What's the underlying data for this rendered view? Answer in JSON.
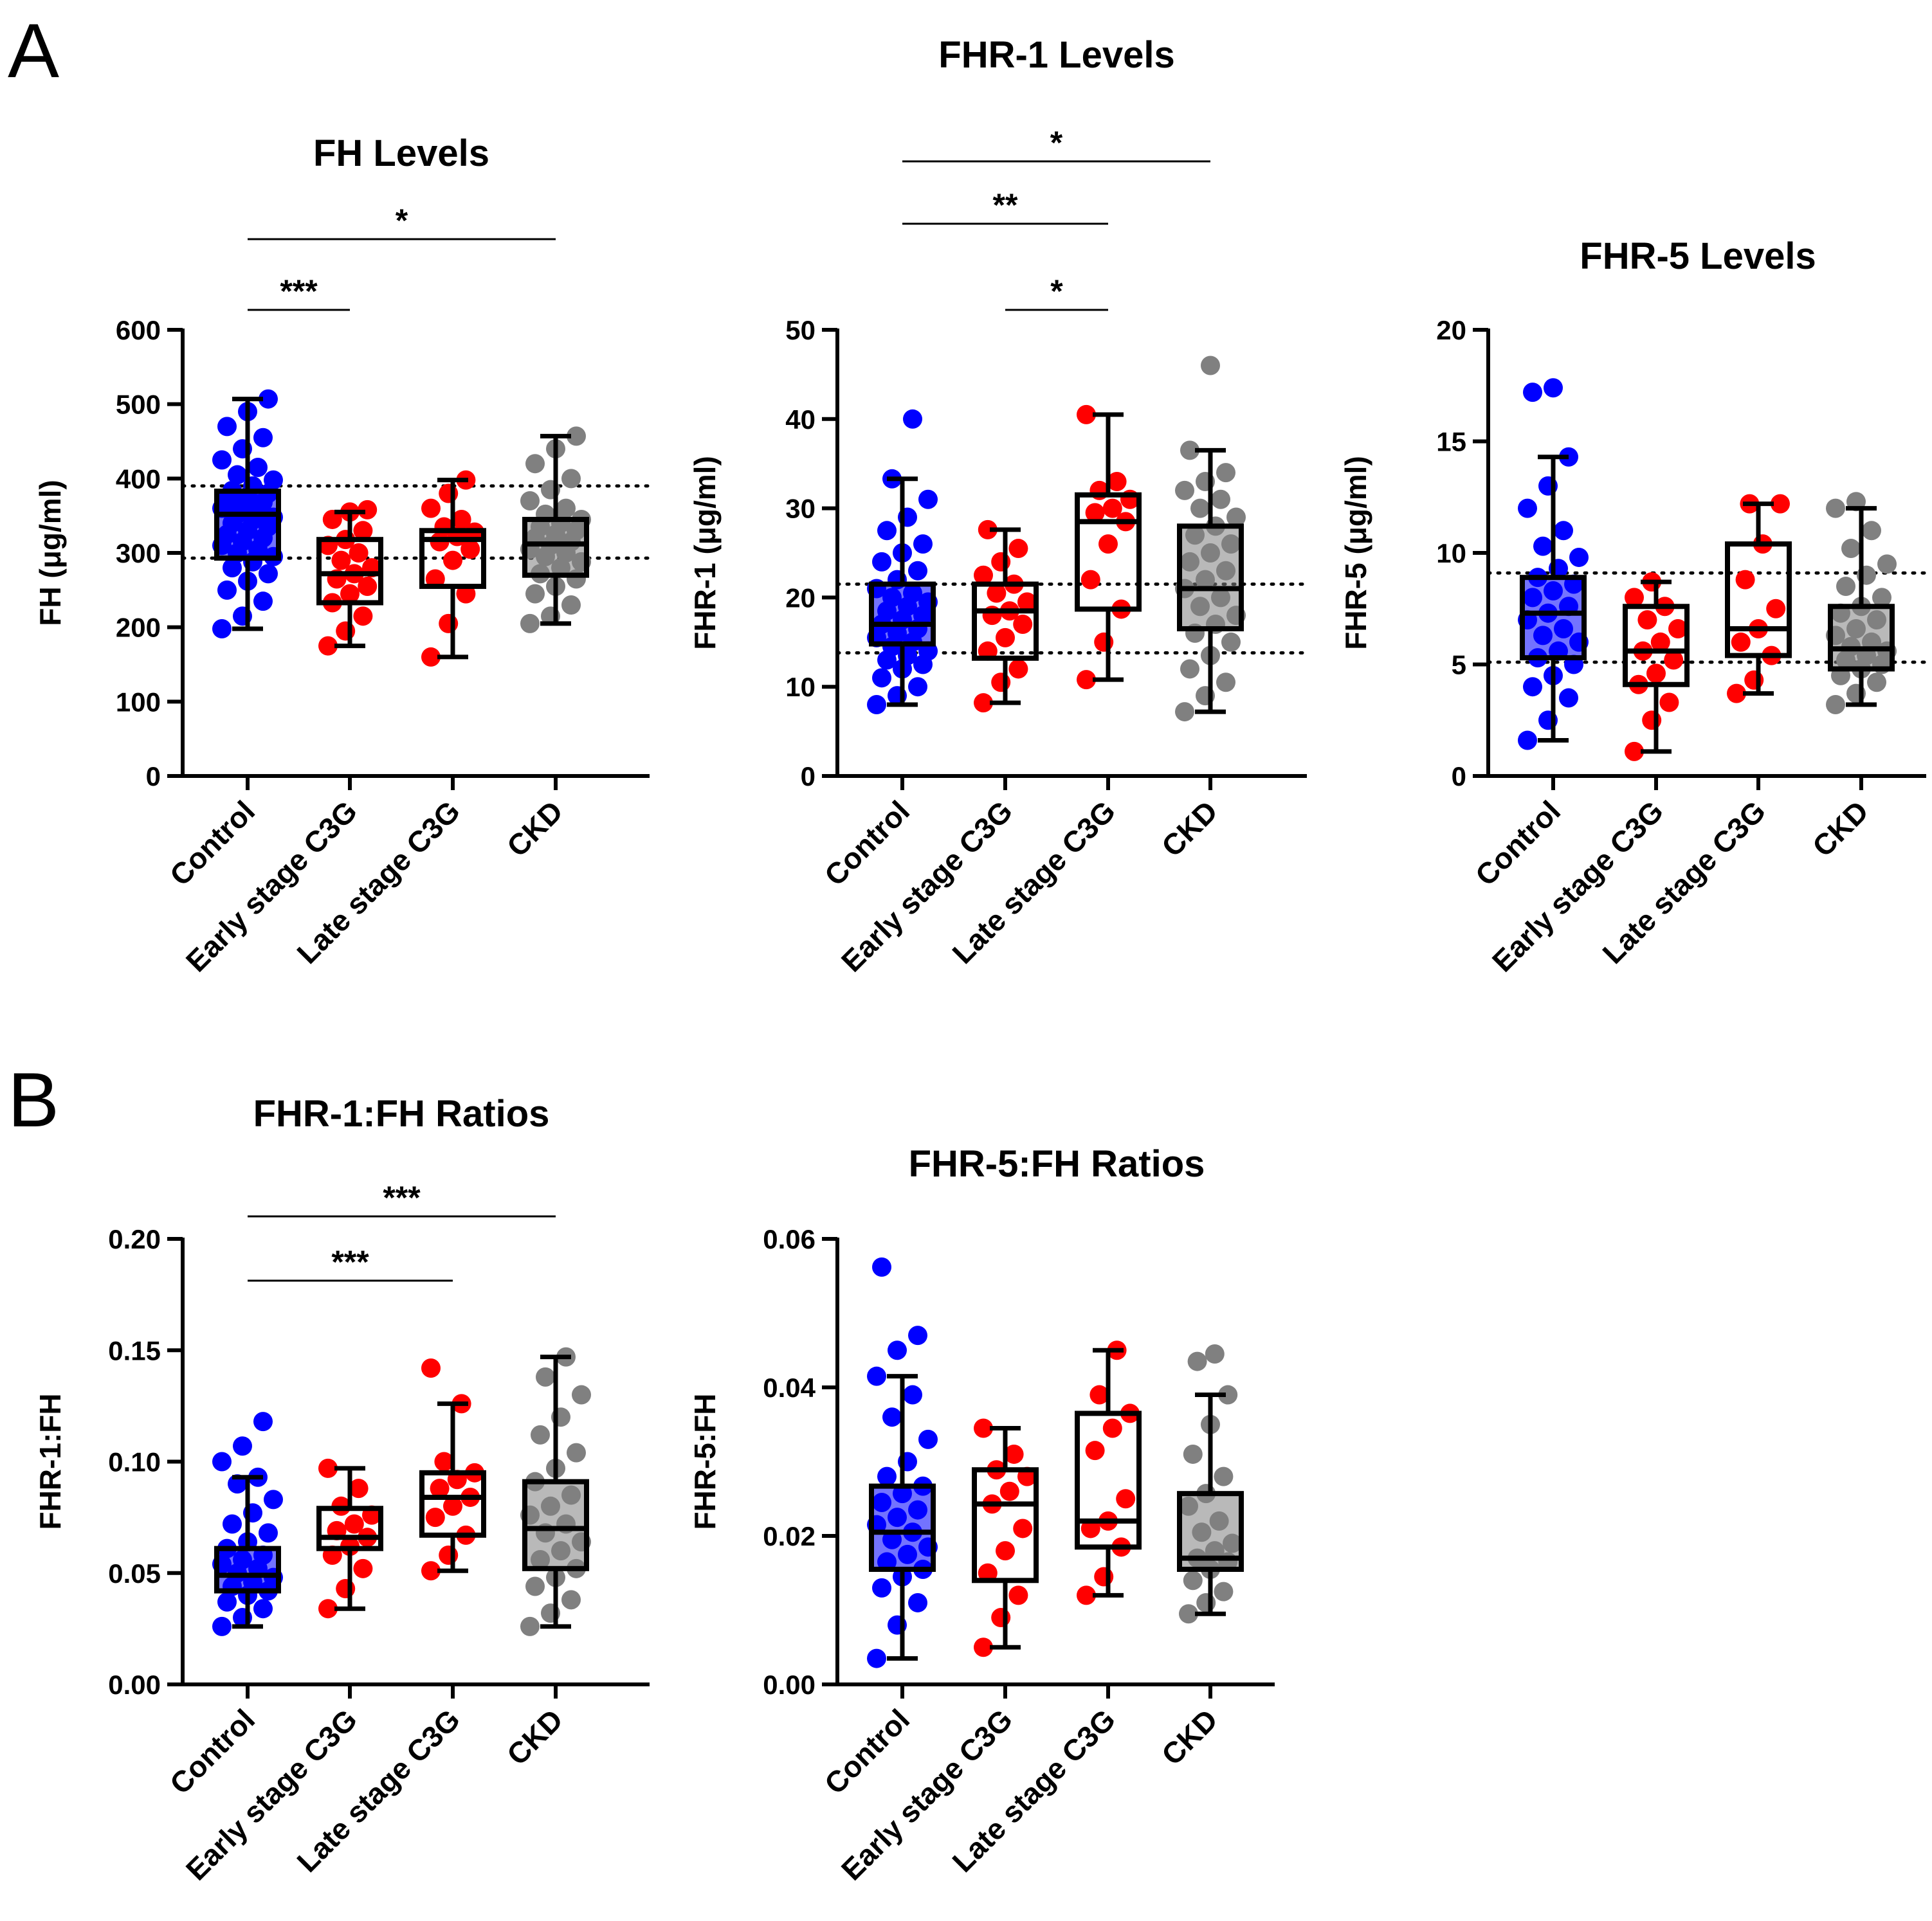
{
  "panel_letters": [
    "A",
    "B"
  ],
  "chart_data": [
    {
      "id": "fh",
      "type": "box",
      "title": "FH Levels",
      "ylabel": "FH (μg/ml)",
      "ylim": [
        0,
        600
      ],
      "yticks": [
        0,
        100,
        200,
        300,
        400,
        500,
        600
      ],
      "categories": [
        "Control",
        "Early stage C3G",
        "Late stage C3G",
        "CKD"
      ],
      "colors": [
        "#0000ff",
        "#ff0000",
        "#ff0000",
        "#808080"
      ],
      "box_fill": [
        "#0000ff",
        "#ffffff",
        "#ffffff",
        "#808080"
      ],
      "reference_lines": [
        390,
        293
      ],
      "boxes": [
        {
          "min": 198,
          "q1": 293,
          "median": 352,
          "q3": 383,
          "max": 507
        },
        {
          "min": 175,
          "q1": 233,
          "median": 272,
          "q3": 318,
          "max": 355
        },
        {
          "min": 160,
          "q1": 255,
          "median": 318,
          "q3": 330,
          "max": 398
        },
        {
          "min": 205,
          "q1": 270,
          "median": 312,
          "q3": 345,
          "max": 457
        }
      ],
      "points": [
        [
          198,
          215,
          235,
          250,
          262,
          272,
          280,
          288,
          295,
          300,
          305,
          310,
          315,
          320,
          325,
          330,
          335,
          340,
          344,
          348,
          352,
          356,
          360,
          364,
          368,
          372,
          376,
          380,
          384,
          390,
          398,
          405,
          415,
          425,
          440,
          455,
          470,
          490,
          507
        ],
        [
          175,
          195,
          215,
          233,
          245,
          255,
          265,
          272,
          280,
          290,
          300,
          310,
          318,
          330,
          345,
          355,
          358
        ],
        [
          160,
          205,
          245,
          265,
          290,
          305,
          315,
          322,
          328,
          335,
          345,
          360,
          380,
          398
        ],
        [
          205,
          215,
          230,
          245,
          255,
          265,
          272,
          280,
          288,
          295,
          300,
          305,
          310,
          315,
          320,
          325,
          330,
          335,
          340,
          345,
          352,
          360,
          370,
          385,
          400,
          420,
          440,
          457
        ]
      ],
      "significance": [
        {
          "from": 0,
          "to": 1,
          "label": "***"
        },
        {
          "from": 0,
          "to": 3,
          "label": "*"
        }
      ]
    },
    {
      "id": "fhr1",
      "type": "box",
      "title": "FHR-1 Levels",
      "ylabel": "FHR-1 (μg/ml)",
      "ylim": [
        0,
        50
      ],
      "yticks": [
        0,
        10,
        20,
        30,
        40,
        50
      ],
      "categories": [
        "Control",
        "Early stage C3G",
        "Late stage C3G",
        "CKD"
      ],
      "colors": [
        "#0000ff",
        "#ff0000",
        "#ff0000",
        "#808080"
      ],
      "box_fill": [
        "#0000ff",
        "#ffffff",
        "#ffffff",
        "#808080"
      ],
      "reference_lines": [
        21.5,
        13.8
      ],
      "boxes": [
        {
          "min": 8,
          "q1": 14.8,
          "median": 17,
          "q3": 21.5,
          "max": 33.3
        },
        {
          "min": 8.2,
          "q1": 13.2,
          "median": 18.5,
          "q3": 21.5,
          "max": 27.6
        },
        {
          "min": 10.8,
          "q1": 18.7,
          "median": 28.5,
          "q3": 31.5,
          "max": 40.5
        },
        {
          "min": 7.2,
          "q1": 16.5,
          "median": 21,
          "q3": 28,
          "max": 36.5
        }
      ],
      "points": [
        [
          8,
          9,
          10,
          11,
          12,
          12.5,
          13,
          13.5,
          14,
          14.5,
          15,
          15.5,
          16,
          16.5,
          17,
          17.5,
          18,
          18.5,
          19,
          19.5,
          20,
          20.5,
          21,
          22,
          23,
          24,
          25,
          26,
          27.5,
          29,
          31,
          33.3,
          40
        ],
        [
          8.2,
          10.5,
          12,
          14,
          15.5,
          17,
          18,
          18.5,
          19.5,
          20.5,
          21.5,
          22.5,
          24,
          25.5,
          27.6
        ],
        [
          10.8,
          15,
          18.7,
          22,
          26,
          28.5,
          29.5,
          30,
          31,
          32,
          33,
          40.5
        ],
        [
          7.2,
          9,
          10.5,
          12,
          13.5,
          15,
          16,
          17,
          18,
          19,
          20,
          21,
          22,
          23,
          24,
          25,
          26,
          27,
          28,
          29,
          30,
          31,
          32,
          33,
          34,
          36.5,
          46
        ]
      ],
      "significance": [
        {
          "from": 1,
          "to": 2,
          "label": "*"
        },
        {
          "from": 0,
          "to": 2,
          "label": "**"
        },
        {
          "from": 0,
          "to": 3,
          "label": "*"
        }
      ]
    },
    {
      "id": "fhr5",
      "type": "box",
      "title": "FHR-5 Levels",
      "ylabel": "FHR-5 (μg/ml)",
      "ylim": [
        0,
        20
      ],
      "yticks": [
        0,
        5,
        10,
        15,
        20
      ],
      "categories": [
        "Control",
        "Early stage C3G",
        "Late stage C3G",
        "CKD"
      ],
      "colors": [
        "#0000ff",
        "#ff0000",
        "#ff0000",
        "#808080"
      ],
      "box_fill": [
        "#0000ff",
        "#ffffff",
        "#ffffff",
        "#808080"
      ],
      "reference_lines": [
        9.1,
        5.1
      ],
      "boxes": [
        {
          "min": 1.6,
          "q1": 5.3,
          "median": 7.3,
          "q3": 8.9,
          "max": 14.3
        },
        {
          "min": 1.1,
          "q1": 4.1,
          "median": 5.6,
          "q3": 7.6,
          "max": 8.7
        },
        {
          "min": 3.7,
          "q1": 5.4,
          "median": 6.6,
          "q3": 10.4,
          "max": 12.2
        },
        {
          "min": 3.2,
          "q1": 4.8,
          "median": 5.7,
          "q3": 7.6,
          "max": 12
        }
      ],
      "points": [
        [
          1.6,
          2.5,
          3.5,
          4,
          4.5,
          5,
          5.3,
          5.6,
          6,
          6.3,
          6.6,
          7,
          7.3,
          7.6,
          8,
          8.3,
          8.6,
          8.9,
          9.3,
          9.8,
          10.3,
          11,
          12,
          13,
          14.3,
          17.2,
          17.4
        ],
        [
          1.1,
          2.5,
          3.3,
          4.1,
          4.6,
          5.2,
          5.6,
          6,
          6.6,
          7,
          7.6,
          8,
          8.7
        ],
        [
          3.7,
          4.3,
          5.4,
          6,
          6.6,
          7.5,
          8.8,
          10.4,
          12.2,
          12.2
        ],
        [
          3.2,
          3.7,
          4.2,
          4.5,
          4.8,
          5,
          5.2,
          5.4,
          5.6,
          5.8,
          6,
          6.3,
          6.6,
          7,
          7.3,
          7.6,
          8,
          8.5,
          9,
          9.5,
          10.2,
          11,
          12,
          12.3
        ]
      ],
      "significance": []
    },
    {
      "id": "fhr1_fh",
      "type": "box",
      "title": "FHR-1:FH Ratios",
      "ylabel": "FHR-1:FH",
      "ylim": [
        0,
        0.2
      ],
      "yticks": [
        0,
        0.05,
        0.1,
        0.15,
        0.2
      ],
      "yticklabels": [
        "0.00",
        "0.05",
        "0.10",
        "0.15",
        "0.20"
      ],
      "categories": [
        "Control",
        "Early stage C3G",
        "Late stage C3G",
        "CKD"
      ],
      "colors": [
        "#0000ff",
        "#ff0000",
        "#ff0000",
        "#808080"
      ],
      "box_fill": [
        "#0000ff",
        "#ffffff",
        "#ffffff",
        "#808080"
      ],
      "reference_lines": [],
      "boxes": [
        {
          "min": 0.026,
          "q1": 0.042,
          "median": 0.049,
          "q3": 0.061,
          "max": 0.093
        },
        {
          "min": 0.034,
          "q1": 0.061,
          "median": 0.066,
          "q3": 0.079,
          "max": 0.097
        },
        {
          "min": 0.051,
          "q1": 0.067,
          "median": 0.084,
          "q3": 0.095,
          "max": 0.126
        },
        {
          "min": 0.026,
          "q1": 0.052,
          "median": 0.07,
          "q3": 0.091,
          "max": 0.147
        }
      ],
      "points": [
        [
          0.026,
          0.03,
          0.034,
          0.037,
          0.04,
          0.042,
          0.044,
          0.046,
          0.048,
          0.05,
          0.052,
          0.054,
          0.056,
          0.058,
          0.061,
          0.064,
          0.068,
          0.072,
          0.077,
          0.083,
          0.09,
          0.093,
          0.1,
          0.107,
          0.118
        ],
        [
          0.034,
          0.043,
          0.052,
          0.058,
          0.062,
          0.066,
          0.069,
          0.072,
          0.076,
          0.08,
          0.088,
          0.097
        ],
        [
          0.051,
          0.058,
          0.067,
          0.075,
          0.08,
          0.084,
          0.088,
          0.092,
          0.095,
          0.1,
          0.126,
          0.142
        ],
        [
          0.026,
          0.032,
          0.038,
          0.044,
          0.048,
          0.052,
          0.056,
          0.06,
          0.064,
          0.068,
          0.072,
          0.076,
          0.08,
          0.085,
          0.091,
          0.097,
          0.104,
          0.112,
          0.12,
          0.13,
          0.138,
          0.147
        ]
      ],
      "significance": [
        {
          "from": 0,
          "to": 2,
          "label": "***"
        },
        {
          "from": 0,
          "to": 3,
          "label": "***"
        }
      ]
    },
    {
      "id": "fhr5_fh",
      "type": "box",
      "title": "FHR-5:FH Ratios",
      "ylabel": "FHR-5:FH",
      "ylim": [
        0,
        0.06
      ],
      "yticks": [
        0,
        0.02,
        0.04,
        0.06
      ],
      "yticklabels": [
        "0.00",
        "0.02",
        "0.04",
        "0.06"
      ],
      "categories": [
        "Control",
        "Early stage C3G",
        "Late stage C3G",
        "CKD"
      ],
      "colors": [
        "#0000ff",
        "#ff0000",
        "#ff0000",
        "#808080"
      ],
      "box_fill": [
        "#0000ff",
        "#ffffff",
        "#ffffff",
        "#808080"
      ],
      "reference_lines": [],
      "boxes": [
        {
          "min": 0.0035,
          "q1": 0.0155,
          "median": 0.0205,
          "q3": 0.0267,
          "max": 0.0415
        },
        {
          "min": 0.005,
          "q1": 0.014,
          "median": 0.0243,
          "q3": 0.0289,
          "max": 0.0345
        },
        {
          "min": 0.012,
          "q1": 0.0185,
          "median": 0.022,
          "q3": 0.0365,
          "max": 0.045
        },
        {
          "min": 0.0095,
          "q1": 0.0155,
          "median": 0.017,
          "q3": 0.0257,
          "max": 0.039
        }
      ],
      "points": [
        [
          0.0035,
          0.008,
          0.011,
          0.013,
          0.0145,
          0.0155,
          0.0165,
          0.0175,
          0.0185,
          0.0195,
          0.0205,
          0.0215,
          0.0225,
          0.0235,
          0.0245,
          0.0257,
          0.0267,
          0.028,
          0.03,
          0.033,
          0.036,
          0.039,
          0.0415,
          0.045,
          0.047,
          0.0562
        ],
        [
          0.005,
          0.009,
          0.012,
          0.015,
          0.018,
          0.021,
          0.0243,
          0.026,
          0.028,
          0.0289,
          0.031,
          0.0345
        ],
        [
          0.012,
          0.0145,
          0.0185,
          0.021,
          0.022,
          0.025,
          0.0315,
          0.0345,
          0.0365,
          0.039,
          0.045
        ],
        [
          0.0095,
          0.011,
          0.0125,
          0.014,
          0.0155,
          0.0165,
          0.017,
          0.018,
          0.019,
          0.0205,
          0.022,
          0.024,
          0.0257,
          0.028,
          0.031,
          0.035,
          0.039,
          0.0435,
          0.0445
        ]
      ],
      "significance": []
    }
  ]
}
